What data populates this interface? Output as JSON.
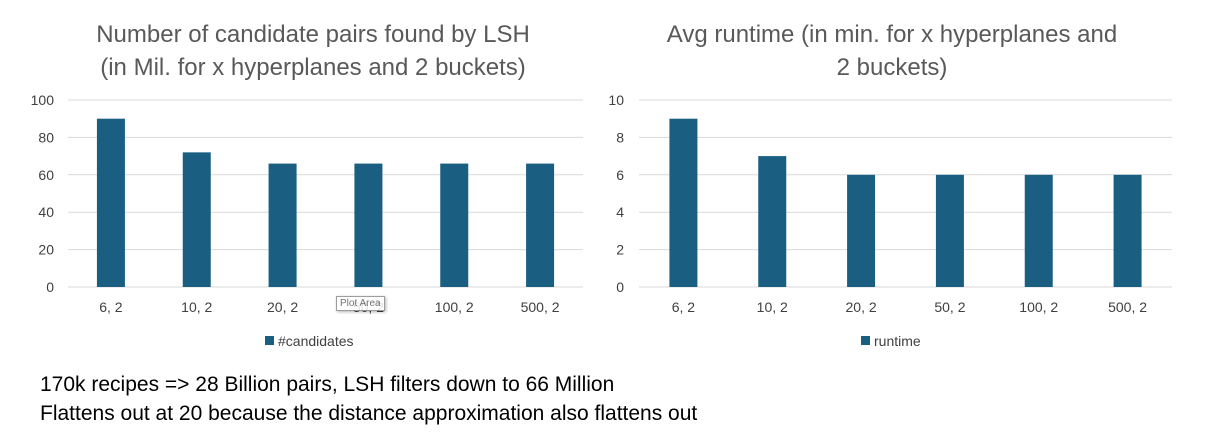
{
  "colors": {
    "bar": "#1a5e82",
    "gridline": "#d9d9d9",
    "title": "#595959",
    "tick": "#404040"
  },
  "chart_data": [
    {
      "type": "bar",
      "title_lines": [
        "Number of candidate pairs found by LSH",
        "(in Mil. for x hyperplanes and 2 buckets)"
      ],
      "categories": [
        "6, 2",
        "10, 2",
        "20, 2",
        "50, 2",
        "100, 2",
        "500, 2"
      ],
      "series": [
        {
          "name": "#candidates",
          "values": [
            90,
            72,
            66,
            66,
            66,
            66
          ]
        }
      ],
      "yticks": [
        "0",
        "20",
        "40",
        "60",
        "80",
        "100"
      ],
      "ylim": [
        0,
        100
      ],
      "grid": true,
      "legend_position": "bottom"
    },
    {
      "type": "bar",
      "title_lines": [
        "Avg runtime (in min. for x hyperplanes and",
        "2 buckets)"
      ],
      "categories": [
        "6, 2",
        "10, 2",
        "20, 2",
        "50, 2",
        "100, 2",
        "500, 2"
      ],
      "series": [
        {
          "name": "runtime",
          "values": [
            9,
            7,
            6,
            6,
            6,
            6
          ]
        }
      ],
      "yticks": [
        "0",
        "2",
        "4",
        "6",
        "8",
        "10"
      ],
      "ylim": [
        0,
        10
      ],
      "grid": true,
      "legend_position": "bottom"
    }
  ],
  "tooltip": {
    "text": "Plot Area"
  },
  "notes": [
    "170k recipes => 28 Billion pairs, LSH filters down to 66 Million",
    "Flattens out at 20 because the distance approximation also flattens out"
  ]
}
